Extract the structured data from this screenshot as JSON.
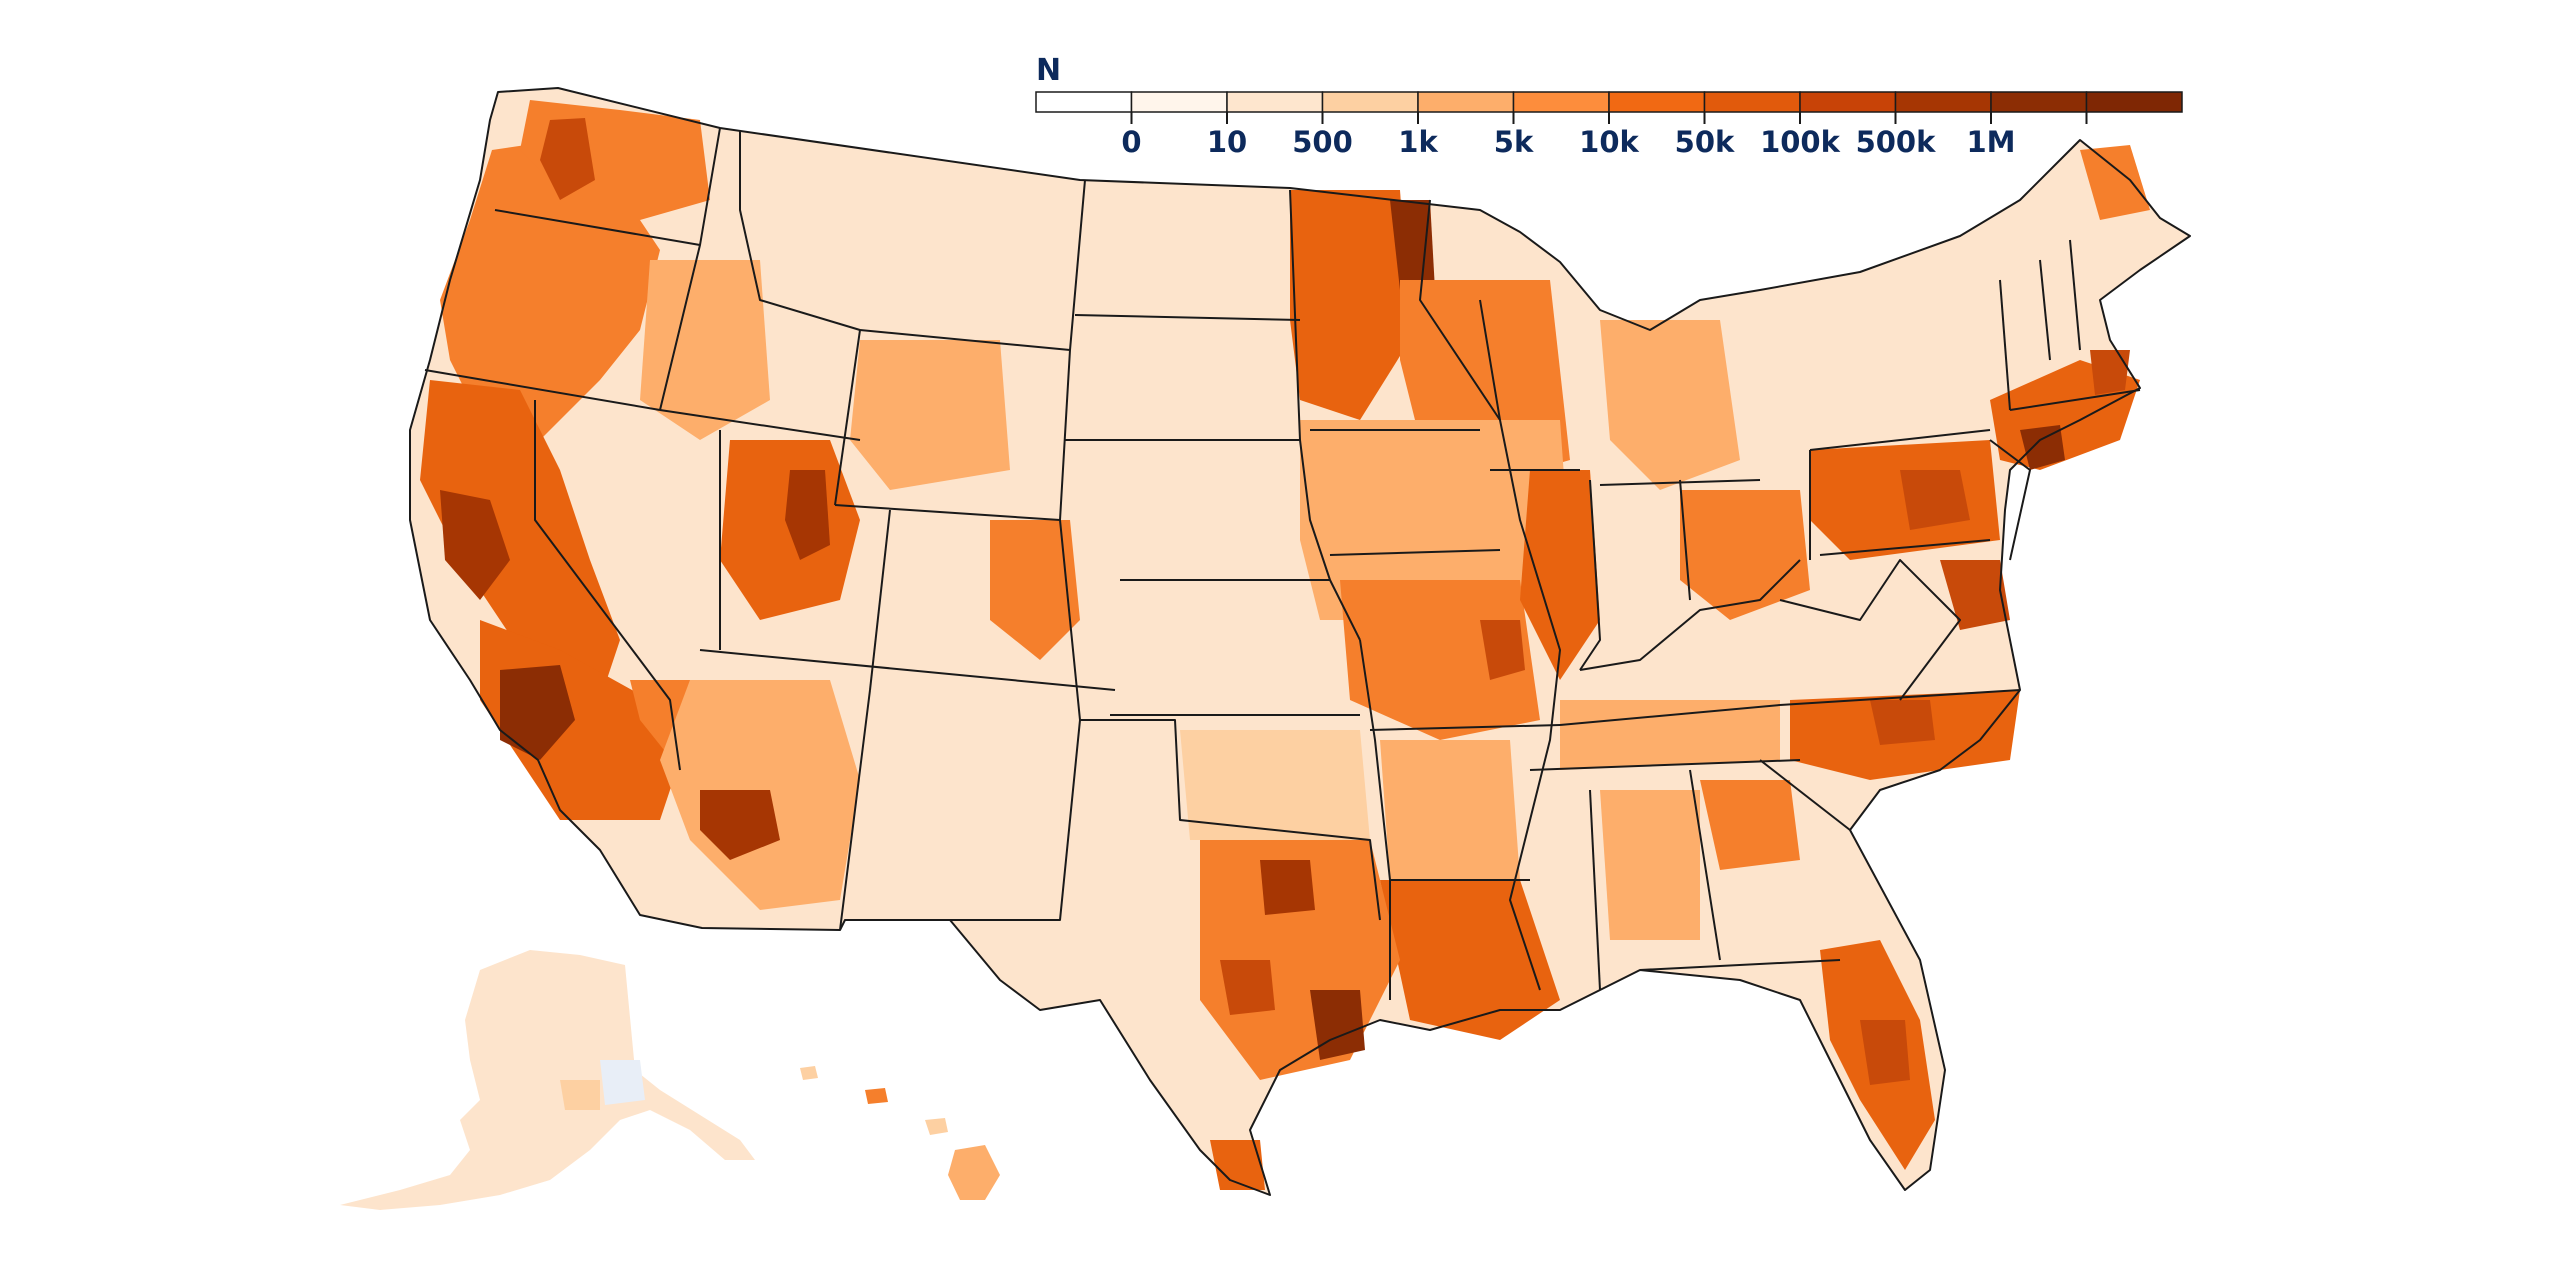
{
  "legend": {
    "title": "N",
    "bins": [
      {
        "label": "",
        "color": "#ffffff"
      },
      {
        "label": "0",
        "color": "#fff5eb"
      },
      {
        "label": "10",
        "color": "#fee6ce"
      },
      {
        "label": "500",
        "color": "#fdd0a2"
      },
      {
        "label": "1k",
        "color": "#fdae6b"
      },
      {
        "label": "5k",
        "color": "#fd8d3c"
      },
      {
        "label": "10k",
        "color": "#f16913"
      },
      {
        "label": "50k",
        "color": "#e15a0c"
      },
      {
        "label": "100k",
        "color": "#c84307"
      },
      {
        "label": "500k",
        "color": "#a63603"
      },
      {
        "label": "1M",
        "color": "#8c2d04"
      },
      {
        "label": "",
        "color": "#7f2704"
      }
    ]
  },
  "colors": {
    "base": "#fde4cc",
    "light": "#fdd0a2",
    "mid": "#fdae6b",
    "strong": "#f57f2c",
    "vivid": "#e8630f",
    "deep": "#c84a0a",
    "darkest": "#8c2d04",
    "nodata": "#e8eef7",
    "border": "#1a1a1a"
  }
}
